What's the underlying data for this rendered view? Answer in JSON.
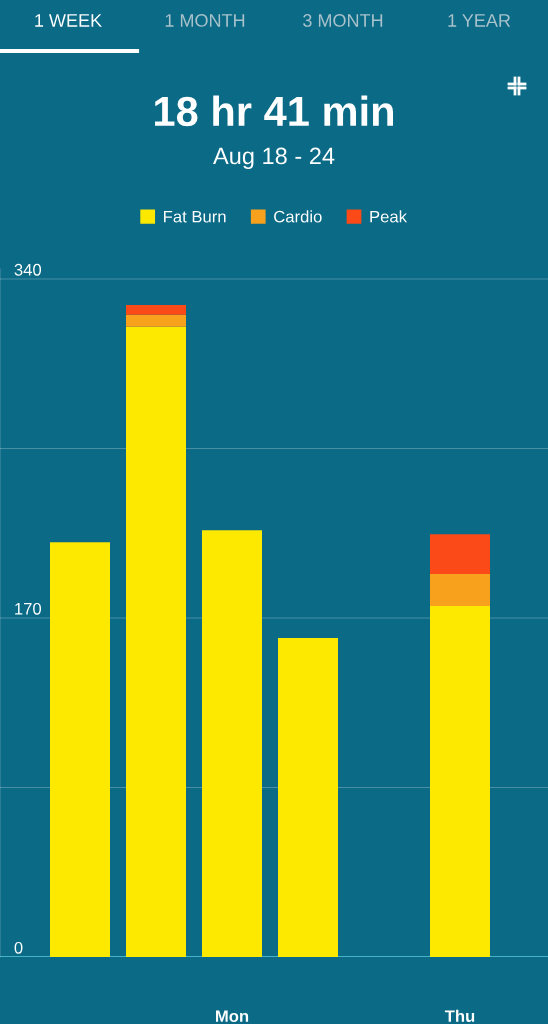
{
  "chart_data": {
    "type": "bar",
    "title": "18 hr 41 min",
    "subtitle": "Aug 18 - 24",
    "categories": [
      null,
      null,
      "Mon",
      null,
      null,
      "Thu",
      null
    ],
    "stacked": true,
    "series": [
      {
        "name": "Fat Burn",
        "color": "#fde800",
        "values": [
          208,
          316,
          214,
          160,
          0,
          176,
          0
        ]
      },
      {
        "name": "Cardio",
        "color": "#f7a11d",
        "values": [
          0,
          6,
          0,
          0,
          0,
          16,
          0
        ]
      },
      {
        "name": "Peak",
        "color": "#fb4a17",
        "values": [
          0,
          5,
          0,
          0,
          0,
          20,
          0
        ]
      }
    ],
    "ylim": [
      0,
      345
    ],
    "yticks": [
      0,
      {
        "value": 85,
        "label": null
      },
      170,
      {
        "value": 255,
        "label": null
      },
      340
    ],
    "grid": "y",
    "legend": "top",
    "annotations": [
      "1 WEEK",
      "1 MONTH",
      "3 MONTH",
      "1 YEAR"
    ]
  }
}
